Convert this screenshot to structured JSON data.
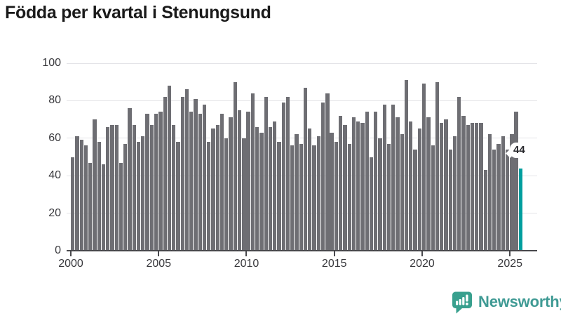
{
  "title": "Födda per kvartal i Stenungsund",
  "chart_data": {
    "type": "bar",
    "title": "Födda per kvartal i Stenungsund",
    "x_start_quarter": "2000-Q1",
    "x_end_quarter": "2025-Q3",
    "frequency": "quarterly",
    "values": [
      50,
      61,
      59,
      56,
      47,
      70,
      58,
      46,
      66,
      67,
      67,
      47,
      57,
      76,
      67,
      58,
      61,
      73,
      67,
      73,
      74,
      82,
      88,
      67,
      58,
      82,
      86,
      74,
      81,
      73,
      78,
      58,
      65,
      67,
      73,
      60,
      71,
      90,
      75,
      60,
      74,
      84,
      66,
      63,
      82,
      66,
      69,
      58,
      79,
      82,
      56,
      62,
      57,
      87,
      65,
      56,
      61,
      79,
      84,
      63,
      58,
      72,
      67,
      57,
      71,
      69,
      68,
      74,
      50,
      74,
      60,
      78,
      57,
      78,
      71,
      62,
      91,
      69,
      54,
      65,
      89,
      71,
      56,
      90,
      68,
      70,
      54,
      61,
      82,
      72,
      67,
      68,
      68,
      68,
      43,
      62,
      54,
      57,
      61,
      54,
      62,
      74,
      44
    ],
    "highlight": {
      "index": 102,
      "value": 44,
      "label": "44",
      "color": "#009e9e"
    },
    "bar_color": "#6e6e73",
    "ylabel": "",
    "xlabel": "",
    "ylim": [
      0,
      100
    ],
    "yticks": [
      0,
      20,
      40,
      60,
      80,
      100
    ],
    "xticks": [
      2000,
      2005,
      2010,
      2015,
      2020,
      2025
    ],
    "grid": "horizontal",
    "gridline_color": "#e4e4e8",
    "legend": "none"
  },
  "branding": {
    "logo_text": "Newsworthy",
    "logo_color": "#38a08e",
    "logo_text_color": "#3f9a94"
  }
}
